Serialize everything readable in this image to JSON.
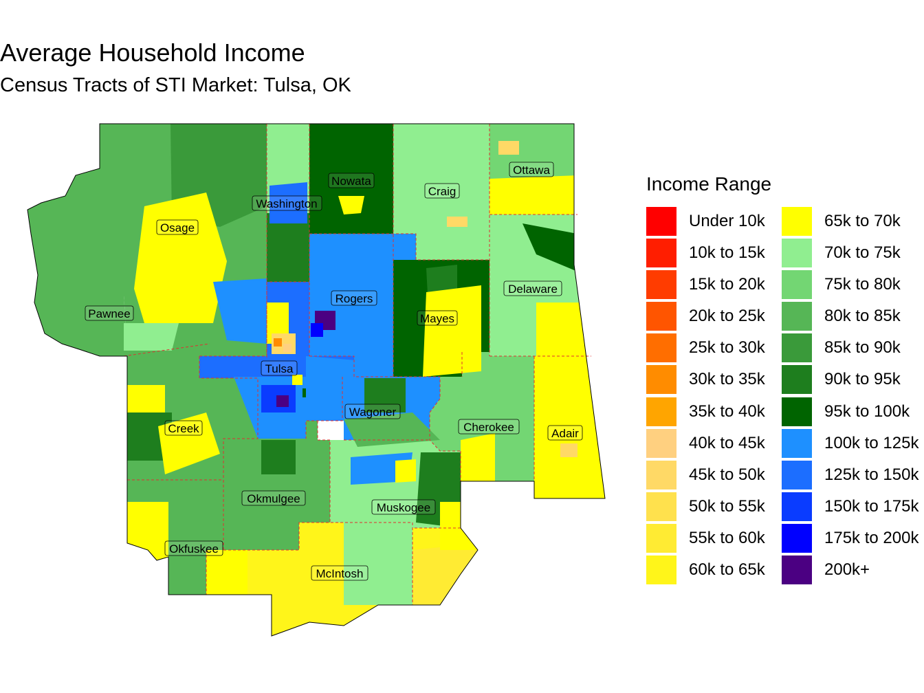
{
  "title": "Average Household Income",
  "subtitle": "Census Tracts of STI Market: Tulsa, OK",
  "legend": {
    "title": "Income Range",
    "items": [
      {
        "label": "Under 10k",
        "color": "#FF0000"
      },
      {
        "label": "10k to 15k",
        "color": "#FF1E00"
      },
      {
        "label": "15k to 20k",
        "color": "#FF3C00"
      },
      {
        "label": "20k to 25k",
        "color": "#FF5500"
      },
      {
        "label": "25k to 30k",
        "color": "#FF6E00"
      },
      {
        "label": "30k to 35k",
        "color": "#FF8C00"
      },
      {
        "label": "35k to 40k",
        "color": "#FFA500"
      },
      {
        "label": "40k to 45k",
        "color": "#FFD080"
      },
      {
        "label": "45k to 50k",
        "color": "#FFD966"
      },
      {
        "label": "50k to 55k",
        "color": "#FFE14D"
      },
      {
        "label": "55k to 60k",
        "color": "#FFEB33"
      },
      {
        "label": "60k to 65k",
        "color": "#FFF51A"
      },
      {
        "label": "65k to 70k",
        "color": "#FFFF00"
      },
      {
        "label": "70k to 75k",
        "color": "#90EE90"
      },
      {
        "label": "75k to 80k",
        "color": "#73D673"
      },
      {
        "label": "80k to 85k",
        "color": "#56B656"
      },
      {
        "label": "85k to 90k",
        "color": "#3A9A3A"
      },
      {
        "label": "90k to 95k",
        "color": "#1E7E1E"
      },
      {
        "label": "95k to 100k",
        "color": "#006400"
      },
      {
        "label": "100k to 125k",
        "color": "#1E90FF"
      },
      {
        "label": "125k to 150k",
        "color": "#1C6EFF"
      },
      {
        "label": "150k to 175k",
        "color": "#0A3CFF"
      },
      {
        "label": "175k to 200k",
        "color": "#0000FF"
      },
      {
        "label": "200k+",
        "color": "#4B0082"
      }
    ]
  },
  "counties": [
    {
      "name": "Osage",
      "color": "#56B656"
    },
    {
      "name": "Washington",
      "color": "#90EE90"
    },
    {
      "name": "Nowata",
      "color": "#006400"
    },
    {
      "name": "Craig",
      "color": "#90EE90"
    },
    {
      "name": "Ottawa",
      "color": "#73D673"
    },
    {
      "name": "Pawnee",
      "color": "#56B656"
    },
    {
      "name": "Rogers",
      "color": "#1E90FF"
    },
    {
      "name": "Mayes",
      "color": "#006400"
    },
    {
      "name": "Delaware",
      "color": "#90EE90"
    },
    {
      "name": "Tulsa",
      "color": "#1C6EFF"
    },
    {
      "name": "Creek",
      "color": "#56B656"
    },
    {
      "name": "Wagoner",
      "color": "#1E90FF"
    },
    {
      "name": "Cherokee",
      "color": "#73D673"
    },
    {
      "name": "Adair",
      "color": "#FFFF00"
    },
    {
      "name": "Okmulgee",
      "color": "#56B656"
    },
    {
      "name": "Muskogee",
      "color": "#90EE90"
    },
    {
      "name": "Okfuskee",
      "color": "#56B656"
    },
    {
      "name": "McIntosh",
      "color": "#FFF51A"
    }
  ]
}
